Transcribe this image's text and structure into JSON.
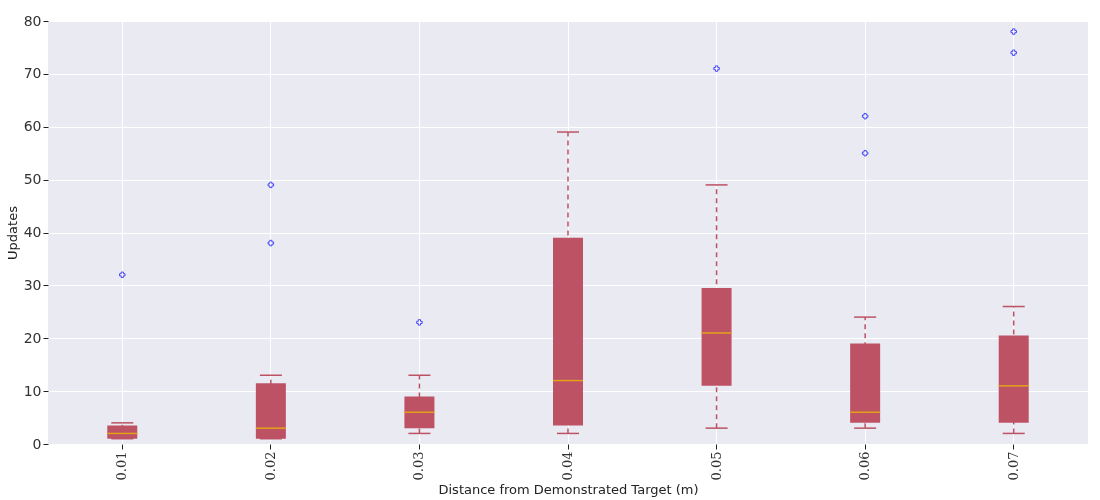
{
  "chart_data": {
    "type": "box",
    "xlabel": "Distance from Demonstrated Target (m)",
    "ylabel": "Updates",
    "categories": [
      "0.01",
      "0.02",
      "0.03",
      "0.04",
      "0.05",
      "0.06",
      "0.07"
    ],
    "series": [
      {
        "color": "#bc5264",
        "boxes": [
          {
            "low": 1,
            "q1": 1,
            "median": 2,
            "q3": 3.5,
            "high": 4,
            "outliers": [
              32
            ]
          },
          {
            "low": 1,
            "q1": 1,
            "median": 3,
            "q3": 11.5,
            "high": 13,
            "outliers": [
              38,
              49
            ]
          },
          {
            "low": 2,
            "q1": 3,
            "median": 6,
            "q3": 9,
            "high": 13,
            "outliers": [
              23
            ]
          },
          {
            "low": 2,
            "q1": 3.5,
            "median": 12,
            "q3": 39,
            "high": 59
          },
          {
            "low": 3,
            "q1": 11,
            "median": 21,
            "q3": 29.5,
            "high": 49,
            "outliers": [
              71
            ]
          },
          {
            "low": 3,
            "q1": 4,
            "median": 6,
            "q3": 19,
            "high": 24,
            "outliers": [
              55,
              62
            ]
          },
          {
            "low": 2,
            "q1": 4,
            "median": 11,
            "q3": 20.5,
            "high": 26,
            "outliers": [
              74,
              78
            ]
          }
        ]
      }
    ],
    "ylim": [
      0,
      80
    ],
    "yticks": [
      0,
      10,
      20,
      30,
      40,
      50,
      60,
      70,
      80
    ],
    "grid": true,
    "marker": "cross",
    "line_style": "dashed"
  }
}
